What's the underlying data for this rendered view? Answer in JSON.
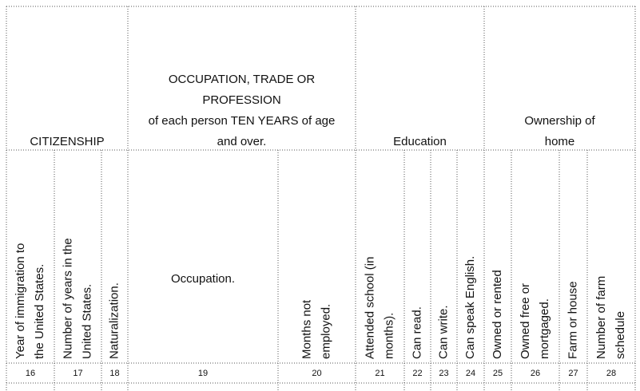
{
  "groups": [
    {
      "lines": [
        "CITIZENSHIP"
      ]
    },
    {
      "lines": [
        "OCCUPATION, TRADE OR",
        "PROFESSION",
        "of each person TEN YEARS of age",
        "and over."
      ]
    },
    {
      "lines": [
        "Education"
      ]
    },
    {
      "lines": [
        "Ownership of",
        "home"
      ]
    }
  ],
  "columns": [
    {
      "lines": [
        "Year of immigration to",
        "the United States."
      ],
      "number": 16
    },
    {
      "lines": [
        "Number of years in the",
        "United States."
      ],
      "number": 17
    },
    {
      "lines": [
        "Naturalization."
      ],
      "number": 18
    },
    {
      "lines": [
        "Occupation."
      ],
      "number": 19
    },
    {
      "lines": [
        "Months not",
        "employed."
      ],
      "number": 20
    },
    {
      "lines": [
        "Attended school (in",
        "months)."
      ],
      "number": 21
    },
    {
      "lines": [
        "Can read."
      ],
      "number": 22
    },
    {
      "lines": [
        "Can write."
      ],
      "number": 23
    },
    {
      "lines": [
        "Can speak English."
      ],
      "number": 24
    },
    {
      "lines": [
        "Owned or rented"
      ],
      "number": 25
    },
    {
      "lines": [
        "Owned free or",
        "mortgaged."
      ],
      "number": 26
    },
    {
      "lines": [
        "Farm or house"
      ],
      "number": 27
    },
    {
      "lines": [
        "Number of farm",
        "schedule"
      ],
      "number": 28
    }
  ]
}
